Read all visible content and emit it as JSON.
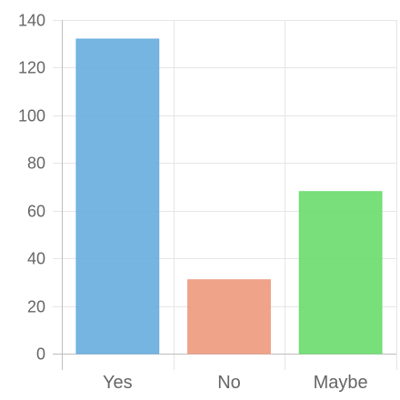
{
  "chart_data": {
    "type": "bar",
    "title": "",
    "xlabel": "",
    "ylabel": "",
    "categories": [
      "Yes",
      "No",
      "Maybe"
    ],
    "values": [
      132,
      31,
      68
    ],
    "colors": [
      "#6aafdf",
      "#ee9c80",
      "#6ddc70"
    ],
    "ylim": [
      0,
      140
    ],
    "yticks": [
      0,
      20,
      40,
      60,
      80,
      100,
      120,
      140
    ],
    "grid": true,
    "legend": "none"
  }
}
